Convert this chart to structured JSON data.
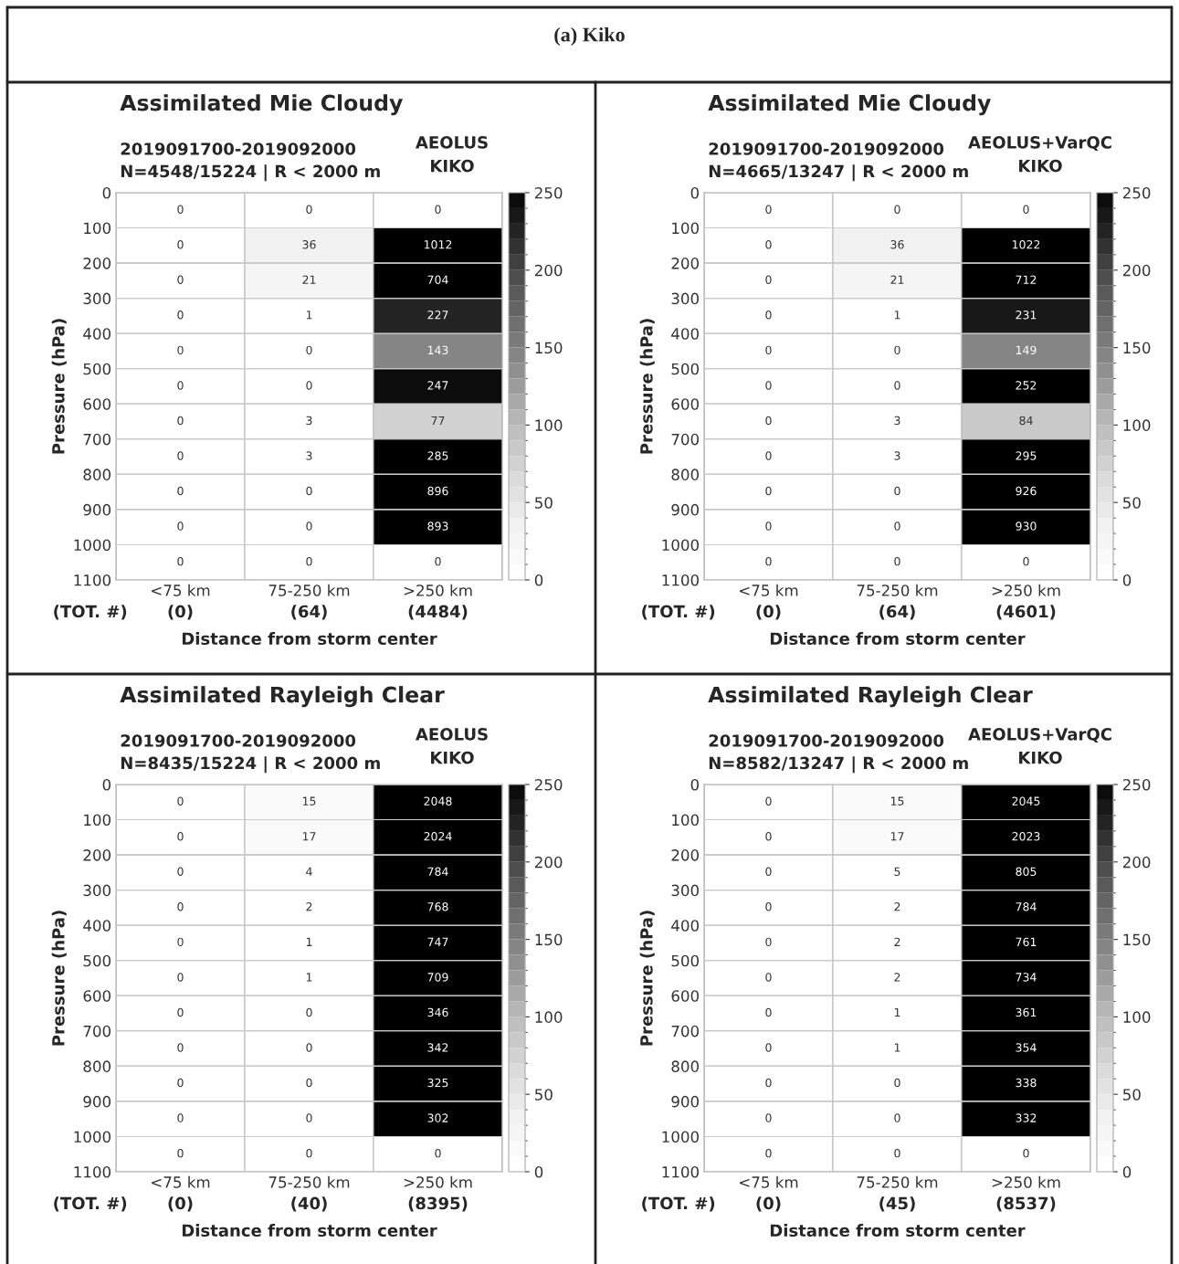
{
  "chart_data": [
    {
      "type": "other",
      "title": "(a) Kiko"
    },
    {
      "type": "heatmap",
      "title": "Assimilated Mie Cloudy",
      "subtitle": "2019091700-2019092000\nN=4548/15224 | R < 2000 m",
      "annotations": [
        "AEOLUS\nKIKO",
        "(TOT. #)"
      ],
      "xlabel": "Distance from storm center",
      "ylabel": "Pressure (hPa)",
      "categories": [
        "<75 km",
        "75-250 km",
        ">250 km"
      ],
      "totals": [
        "(0)",
        "(64)",
        "(4484)"
      ],
      "ylim": [
        1100,
        0
      ],
      "yticks": [
        0,
        100,
        200,
        300,
        400,
        500,
        600,
        700,
        800,
        900,
        1000,
        1100
      ],
      "clim": [
        0,
        250
      ],
      "cticks": [
        0,
        50,
        100,
        150,
        200,
        250
      ],
      "grid": "y",
      "data_labels": true,
      "cells": [
        [
          0,
          0,
          0
        ],
        [
          0,
          36,
          1012
        ],
        [
          0,
          21,
          704
        ],
        [
          0,
          1,
          227
        ],
        [
          0,
          0,
          143
        ],
        [
          0,
          0,
          247
        ],
        [
          0,
          3,
          77
        ],
        [
          0,
          3,
          285
        ],
        [
          0,
          0,
          896
        ],
        [
          0,
          0,
          893
        ],
        [
          0,
          0,
          0
        ]
      ]
    },
    {
      "type": "heatmap",
      "title": "Assimilated Mie Cloudy",
      "subtitle": "2019091700-2019092000\nN=4665/13247 | R < 2000 m",
      "annotations": [
        "AEOLUS+VarQC\nKIKO",
        "(TOT. #)"
      ],
      "xlabel": "Distance from storm center",
      "ylabel": "Pressure (hPa)",
      "categories": [
        "<75 km",
        "75-250 km",
        ">250 km"
      ],
      "totals": [
        "(0)",
        "(64)",
        "(4601)"
      ],
      "ylim": [
        1100,
        0
      ],
      "yticks": [
        0,
        100,
        200,
        300,
        400,
        500,
        600,
        700,
        800,
        900,
        1000,
        1100
      ],
      "clim": [
        0,
        250
      ],
      "cticks": [
        0,
        50,
        100,
        150,
        200,
        250
      ],
      "grid": "y",
      "data_labels": true,
      "cells": [
        [
          0,
          0,
          0
        ],
        [
          0,
          36,
          1022
        ],
        [
          0,
          21,
          712
        ],
        [
          0,
          1,
          231
        ],
        [
          0,
          0,
          149
        ],
        [
          0,
          0,
          252
        ],
        [
          0,
          3,
          84
        ],
        [
          0,
          3,
          295
        ],
        [
          0,
          0,
          926
        ],
        [
          0,
          0,
          930
        ],
        [
          0,
          0,
          0
        ]
      ]
    },
    {
      "type": "heatmap",
      "title": "Assimilated Rayleigh Clear",
      "subtitle": "2019091700-2019092000\nN=8435/15224 | R < 2000 m",
      "annotations": [
        "AEOLUS\nKIKO",
        "(TOT. #)"
      ],
      "xlabel": "Distance from storm center",
      "ylabel": "Pressure (hPa)",
      "categories": [
        "<75 km",
        "75-250 km",
        ">250 km"
      ],
      "totals": [
        "(0)",
        "(40)",
        "(8395)"
      ],
      "ylim": [
        1100,
        0
      ],
      "yticks": [
        0,
        100,
        200,
        300,
        400,
        500,
        600,
        700,
        800,
        900,
        1000,
        1100
      ],
      "clim": [
        0,
        250
      ],
      "cticks": [
        0,
        50,
        100,
        150,
        200,
        250
      ],
      "grid": "y",
      "data_labels": true,
      "cells": [
        [
          0,
          15,
          2048
        ],
        [
          0,
          17,
          2024
        ],
        [
          0,
          4,
          784
        ],
        [
          0,
          2,
          768
        ],
        [
          0,
          1,
          747
        ],
        [
          0,
          1,
          709
        ],
        [
          0,
          0,
          346
        ],
        [
          0,
          0,
          342
        ],
        [
          0,
          0,
          325
        ],
        [
          0,
          0,
          302
        ],
        [
          0,
          0,
          0
        ]
      ]
    },
    {
      "type": "heatmap",
      "title": "Assimilated Rayleigh Clear",
      "subtitle": "2019091700-2019092000\nN=8582/13247 | R < 2000 m",
      "annotations": [
        "AEOLUS+VarQC\nKIKO",
        "(TOT. #)"
      ],
      "xlabel": "Distance from storm center",
      "ylabel": "Pressure (hPa)",
      "categories": [
        "<75 km",
        "75-250 km",
        ">250 km"
      ],
      "totals": [
        "(0)",
        "(45)",
        "(8537)"
      ],
      "ylim": [
        1100,
        0
      ],
      "yticks": [
        0,
        100,
        200,
        300,
        400,
        500,
        600,
        700,
        800,
        900,
        1000,
        1100
      ],
      "clim": [
        0,
        250
      ],
      "cticks": [
        0,
        50,
        100,
        150,
        200,
        250
      ],
      "grid": "y",
      "data_labels": true,
      "cells": [
        [
          0,
          15,
          2045
        ],
        [
          0,
          17,
          2023
        ],
        [
          0,
          5,
          805
        ],
        [
          0,
          2,
          784
        ],
        [
          0,
          2,
          761
        ],
        [
          0,
          2,
          734
        ],
        [
          0,
          1,
          361
        ],
        [
          0,
          1,
          354
        ],
        [
          0,
          0,
          338
        ],
        [
          0,
          0,
          332
        ],
        [
          0,
          0,
          0
        ]
      ]
    }
  ]
}
